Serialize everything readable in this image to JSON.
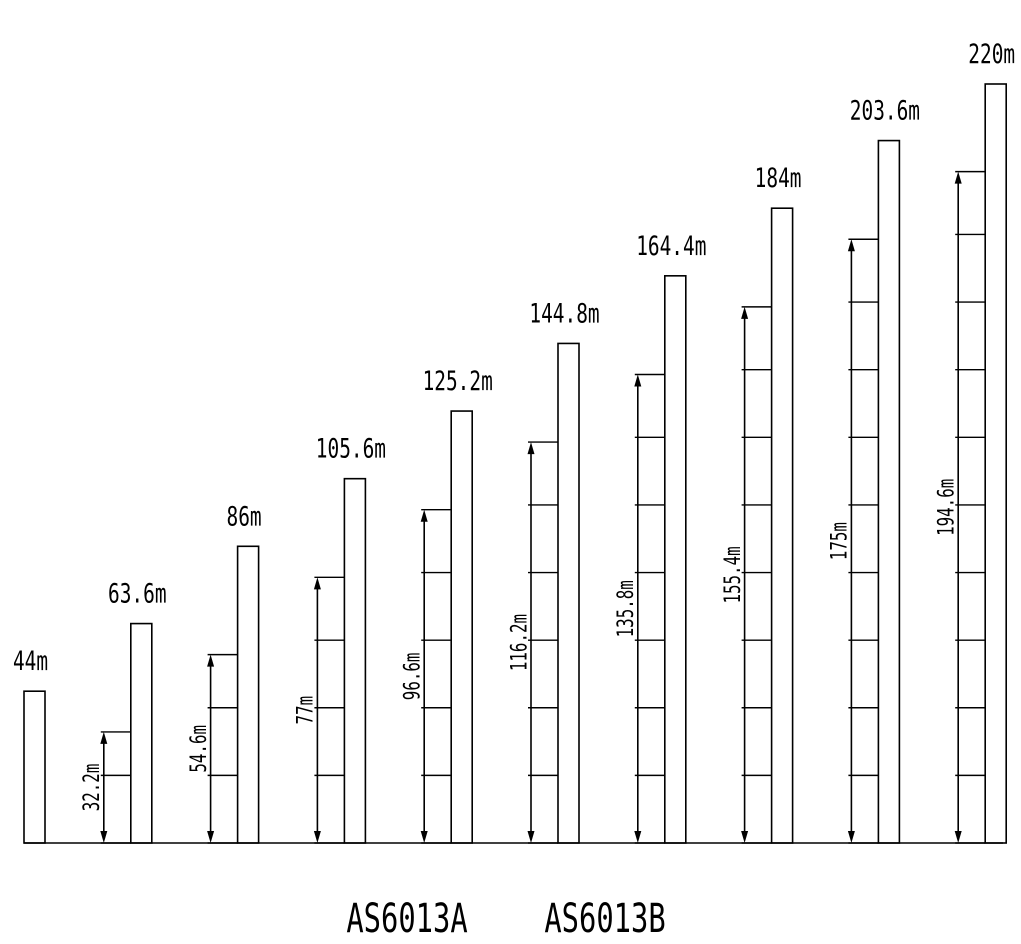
{
  "units": "m",
  "models": [
    "AS6013A",
    "AS6013B"
  ],
  "masts": [
    {
      "height": 44,
      "height_label": "44m",
      "reach": null,
      "reach_label": ""
    },
    {
      "height": 63.6,
      "height_label": "63.6m",
      "reach": 32.2,
      "reach_label": "32.2m"
    },
    {
      "height": 86,
      "height_label": "86m",
      "reach": 54.6,
      "reach_label": "54.6m"
    },
    {
      "height": 105.6,
      "height_label": "105.6m",
      "reach": 77,
      "reach_label": "77m"
    },
    {
      "height": 125.2,
      "height_label": "125.2m",
      "reach": 96.6,
      "reach_label": "96.6m"
    },
    {
      "height": 144.8,
      "height_label": "144.8m",
      "reach": 116.2,
      "reach_label": "116.2m"
    },
    {
      "height": 164.4,
      "height_label": "164.4m",
      "reach": 135.8,
      "reach_label": "135.8m"
    },
    {
      "height": 184,
      "height_label": "184m",
      "reach": 155.4,
      "reach_label": "155.4m"
    },
    {
      "height": 203.6,
      "height_label": "203.6m",
      "reach": 175,
      "reach_label": "175m"
    },
    {
      "height": 220,
      "height_label": "220m",
      "reach": 194.6,
      "reach_label": "194.6m"
    }
  ]
}
